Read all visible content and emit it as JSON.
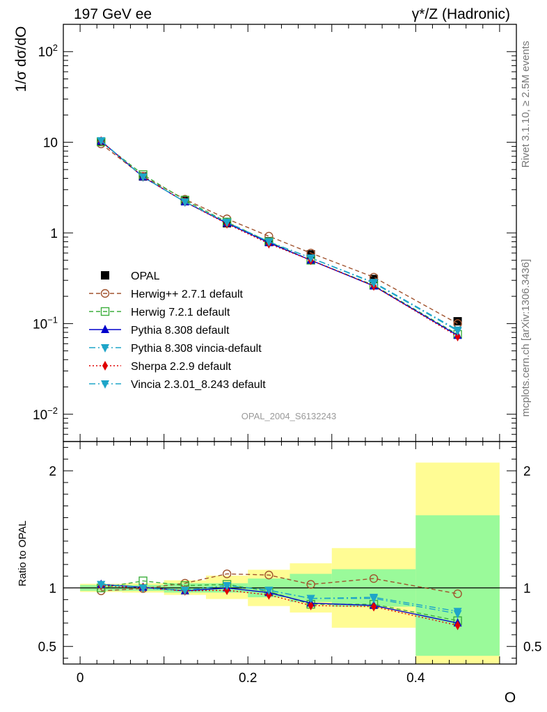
{
  "header": {
    "left_title": "197 GeV ee",
    "right_title": "γ*/Z (Hadronic)"
  },
  "side_labels": {
    "rivet": "Rivet 3.1.10, ≥ 2.5M events",
    "source": "mcplots.cern.ch [arXiv:1306.3436]"
  },
  "analysis_id": "OPAL_2004_S6132243",
  "chart_data": [
    {
      "type": "line",
      "panel": "main",
      "ylabel": "1/σ dσ/dO",
      "yscale": "log",
      "ylim": [
        0.005,
        200
      ],
      "xlim": [
        -0.02,
        0.52
      ],
      "x_ticks": [
        0,
        0.2,
        0.4
      ],
      "y_tick_labels": [
        {
          "value": 0.01,
          "base": "10",
          "exp": "−2"
        },
        {
          "value": 0.1,
          "base": "10",
          "exp": "−1"
        },
        {
          "value": 1,
          "base": "1",
          "exp": ""
        },
        {
          "value": 10,
          "base": "10",
          "exp": ""
        },
        {
          "value": 100,
          "base": "10",
          "exp": "2"
        }
      ],
      "legend_position": "bottom-left",
      "x": [
        0.025,
        0.075,
        0.125,
        0.175,
        0.225,
        0.275,
        0.35,
        0.45
      ],
      "series": [
        {
          "name": "OPAL",
          "color": "#000000",
          "marker": "square-filled",
          "line": "none",
          "values": [
            10.1,
            4.2,
            2.25,
            1.28,
            0.81,
            0.58,
            0.31,
            0.106
          ]
        },
        {
          "name": "Herwig++ 2.7.1 default",
          "color": "#a0522d",
          "marker": "circle-open",
          "line": "dashed",
          "values": [
            9.6,
            4.2,
            2.35,
            1.43,
            0.92,
            0.6,
            0.325,
            0.1
          ]
        },
        {
          "name": "Herwig 7.2.1 default",
          "color": "#3cae3c",
          "marker": "square-open",
          "line": "dashed",
          "values": [
            10.1,
            4.4,
            2.3,
            1.32,
            0.8,
            0.5,
            0.265,
            0.076
          ]
        },
        {
          "name": "Pythia 8.308 default",
          "color": "#0000cc",
          "marker": "triangle-up",
          "line": "solid",
          "values": [
            10.3,
            4.15,
            2.2,
            1.28,
            0.78,
            0.5,
            0.26,
            0.074
          ]
        },
        {
          "name": "Pythia 8.308 vincia-default",
          "color": "#1ea5c8",
          "marker": "triangle-down",
          "line": "dashdot",
          "values": [
            10.4,
            4.15,
            2.2,
            1.31,
            0.8,
            0.53,
            0.285,
            0.085
          ]
        },
        {
          "name": "Sherpa 2.2.9 default",
          "color": "#e00000",
          "marker": "diamond",
          "line": "dotted",
          "values": [
            10.3,
            4.15,
            2.2,
            1.26,
            0.76,
            0.5,
            0.26,
            0.072
          ]
        },
        {
          "name": "Vincia 2.3.01_8.243 default",
          "color": "#1ea5c8",
          "marker": "triangle-down",
          "line": "dashdot",
          "values": [
            10.4,
            4.15,
            2.2,
            1.31,
            0.8,
            0.53,
            0.28,
            0.083
          ]
        }
      ]
    },
    {
      "type": "line",
      "panel": "ratio",
      "xlabel": "O",
      "ylabel": "Ratio to OPAL",
      "ylim": [
        0.35,
        2.25
      ],
      "xlim": [
        -0.02,
        0.52
      ],
      "x_ticks": [
        0,
        0.2,
        0.4
      ],
      "y_ticks": [
        0.5,
        1,
        2
      ],
      "error_bands": {
        "edges": [
          0,
          0.05,
          0.1,
          0.15,
          0.2,
          0.25,
          0.3,
          0.4,
          0.5
        ],
        "inner": [
          [
            0.975,
            1.025
          ],
          [
            0.975,
            1.025
          ],
          [
            0.96,
            1.04
          ],
          [
            0.96,
            1.04
          ],
          [
            0.92,
            1.08
          ],
          [
            0.88,
            1.12
          ],
          [
            0.84,
            1.16
          ],
          [
            0.42,
            1.62
          ]
        ],
        "outer": [
          [
            0.965,
            1.035
          ],
          [
            0.96,
            1.04
          ],
          [
            0.94,
            1.065
          ],
          [
            0.905,
            1.105
          ],
          [
            0.845,
            1.155
          ],
          [
            0.79,
            1.21
          ],
          [
            0.66,
            1.34
          ],
          [
            0.32,
            2.07
          ]
        ],
        "inner_color": "#9afa9a",
        "outer_color": "#fffc94"
      },
      "x": [
        0.025,
        0.075,
        0.125,
        0.175,
        0.225,
        0.275,
        0.35,
        0.45
      ],
      "series": [
        {
          "name": "Herwig++ 2.7.1 default",
          "color": "#a0522d",
          "marker": "circle-open",
          "line": "dashed",
          "values": [
            0.975,
            0.995,
            1.04,
            1.12,
            1.11,
            1.03,
            1.08,
            0.95
          ]
        },
        {
          "name": "Herwig 7.2.1 default",
          "color": "#3cae3c",
          "marker": "square-open",
          "line": "dashed",
          "values": [
            1.0,
            1.06,
            1.02,
            1.03,
            0.97,
            0.86,
            0.86,
            0.72
          ]
        },
        {
          "name": "Pythia 8.308 default",
          "color": "#0000cc",
          "marker": "triangle-up",
          "line": "solid",
          "values": [
            1.03,
            1.005,
            0.975,
            1.0,
            0.96,
            0.87,
            0.85,
            0.7
          ]
        },
        {
          "name": "Pythia 8.308 vincia-default",
          "color": "#1ea5c8",
          "marker": "triangle-down",
          "line": "dashdot",
          "values": [
            1.03,
            1.0,
            0.98,
            1.02,
            0.98,
            0.91,
            0.92,
            0.8
          ]
        },
        {
          "name": "Sherpa 2.2.9 default",
          "color": "#e00000",
          "marker": "diamond",
          "line": "dotted",
          "values": [
            1.02,
            1.0,
            0.975,
            0.98,
            0.94,
            0.85,
            0.84,
            0.68
          ]
        },
        {
          "name": "Vincia 2.3.01_8.243 default",
          "color": "#1ea5c8",
          "marker": "triangle-down",
          "line": "dashdot",
          "values": [
            1.03,
            1.0,
            0.98,
            1.02,
            0.98,
            0.91,
            0.91,
            0.78
          ]
        }
      ]
    }
  ]
}
